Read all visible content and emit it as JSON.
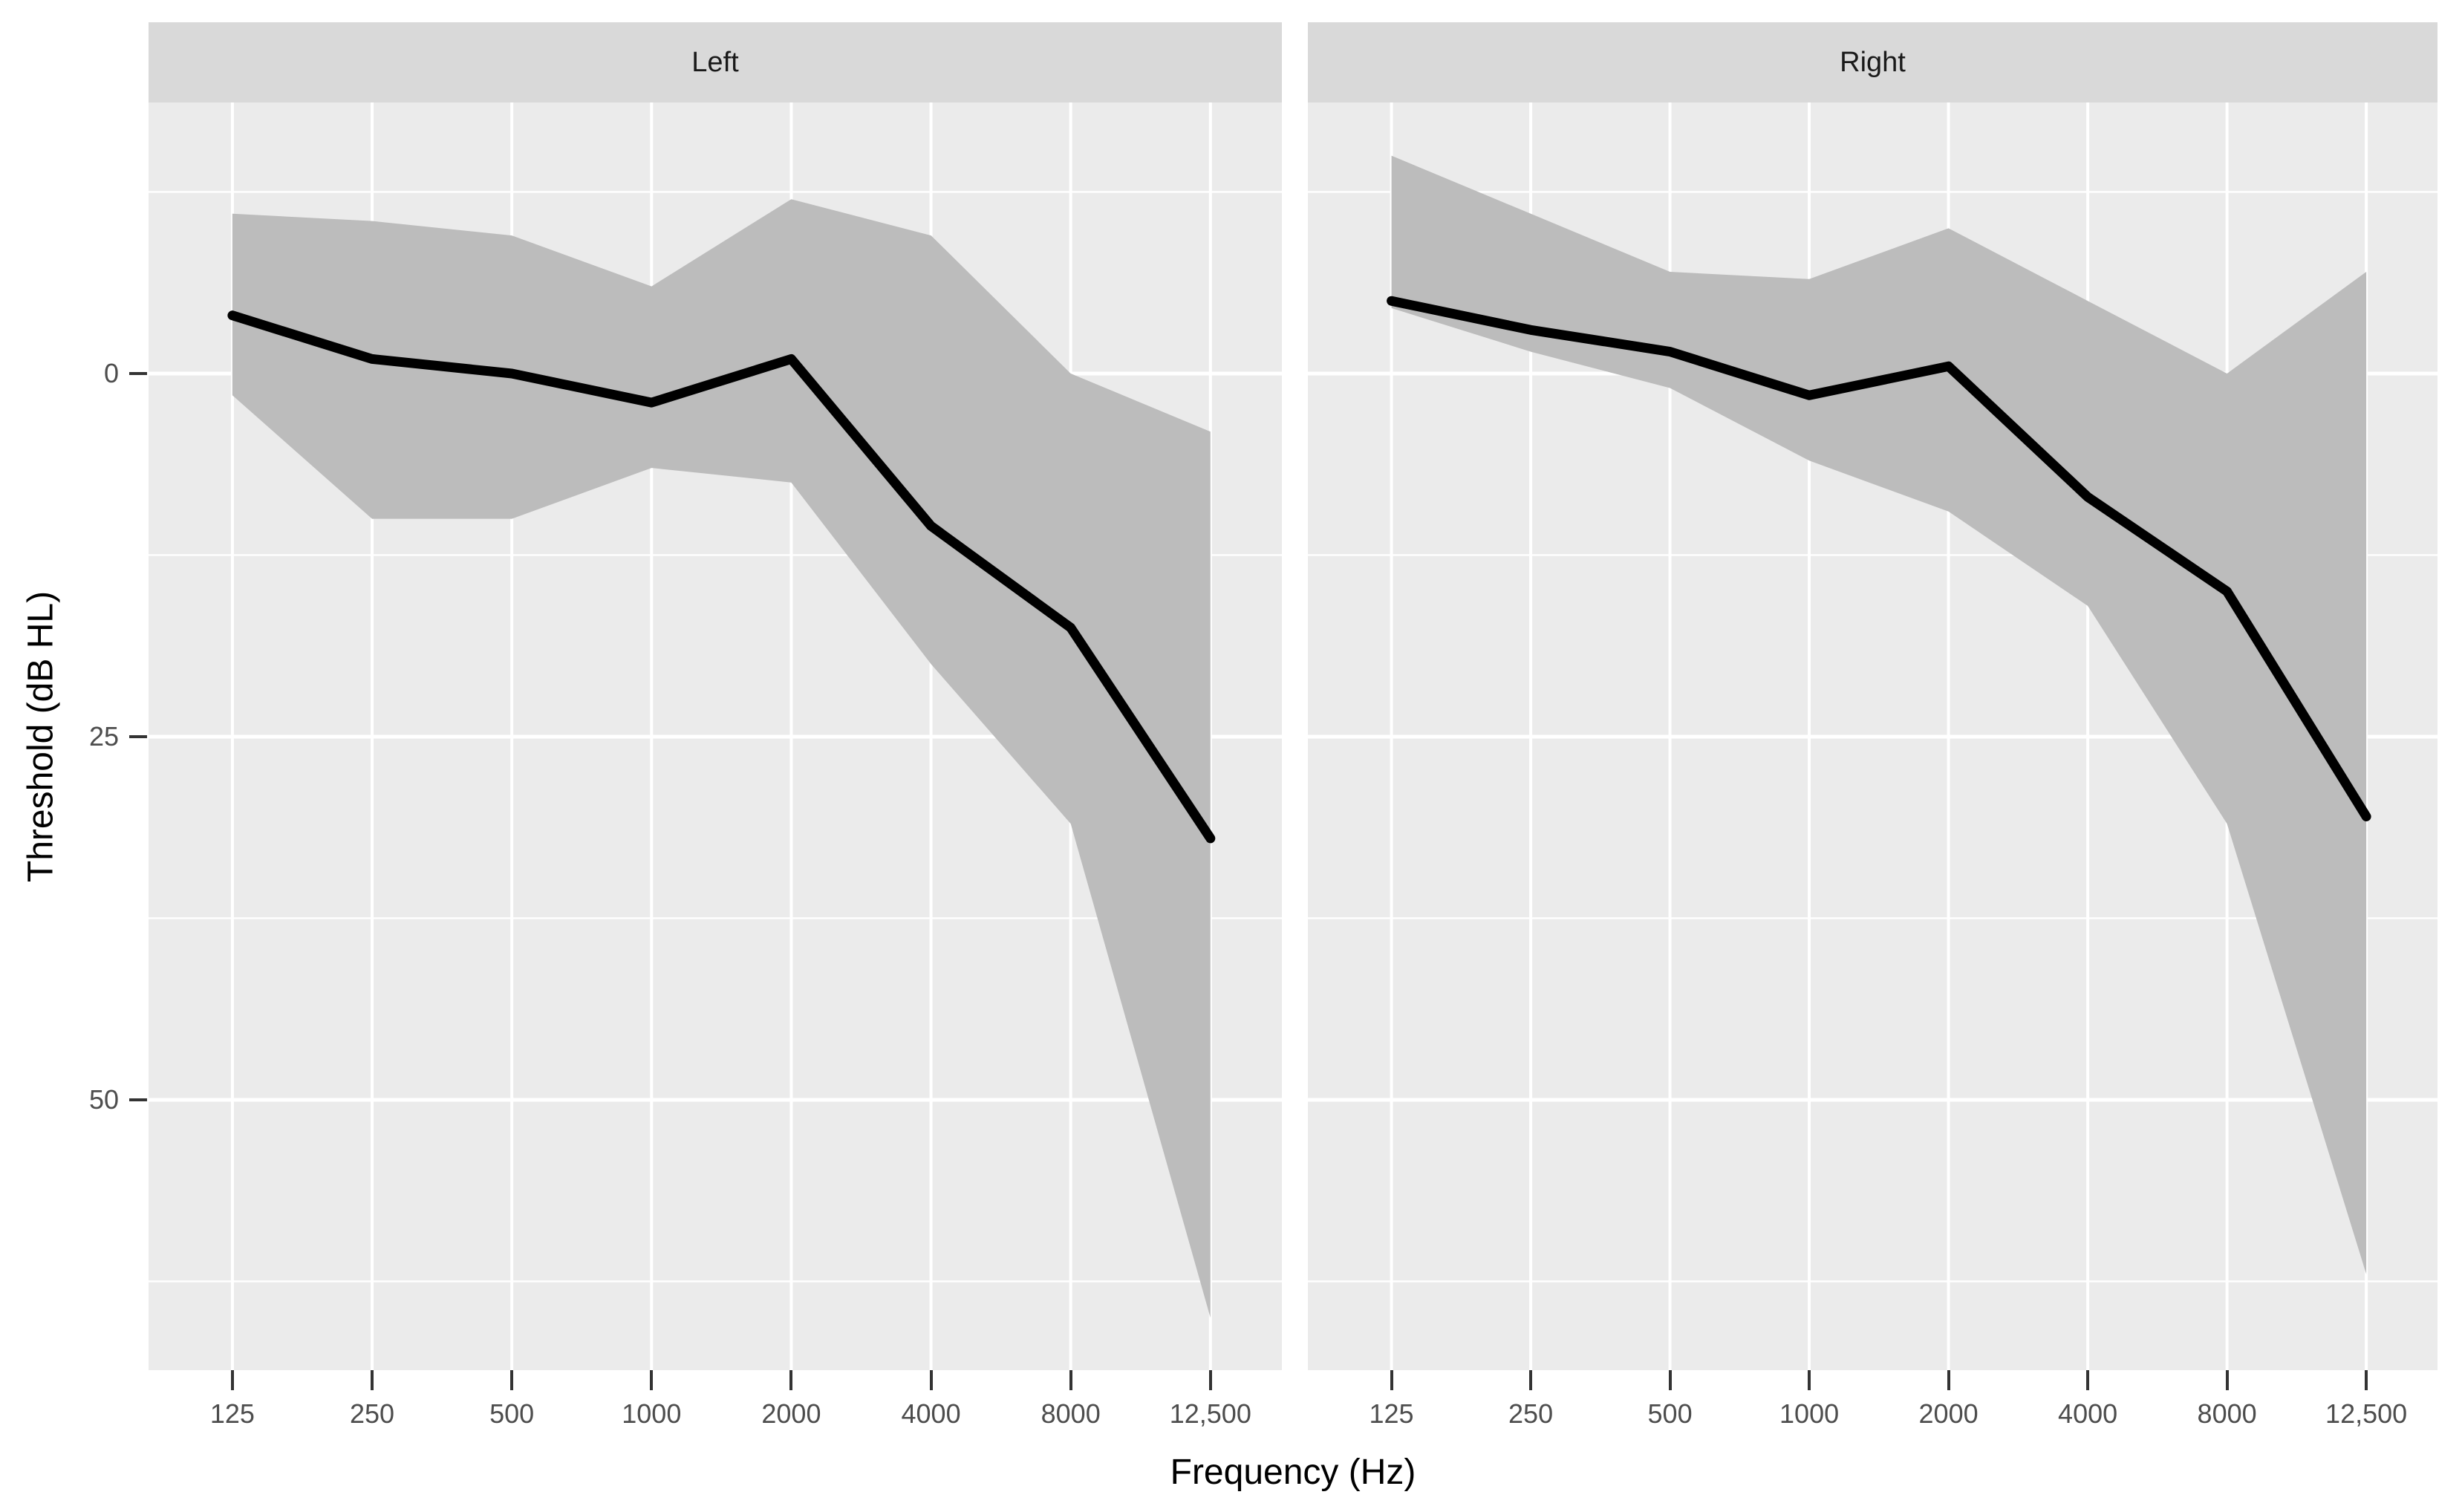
{
  "chart_data": {
    "type": "line",
    "description": "Faceted ribbon-and-line plot (ggplot style) of hearing thresholds by frequency for left and right ears; y axis reversed (0 dB HL at top), shaded band = spread around mean threshold",
    "x": {
      "label": "Frequency (Hz)",
      "ticks": [
        125,
        250,
        500,
        1000,
        2000,
        4000,
        8000,
        12500
      ],
      "tick_labels": [
        "125",
        "250",
        "500",
        "1000",
        "2000",
        "4000",
        "8000",
        "12,500"
      ],
      "scale": "log-like, evenly spaced ticks"
    },
    "y": {
      "label": "Threshold (dB HL)",
      "ticks": [
        0,
        25,
        50
      ],
      "tick_labels": [
        "0",
        "25",
        "50"
      ],
      "minor_ticks": [
        -12.5,
        12.5,
        37.5,
        62.5
      ],
      "reversed": true,
      "range_top_dB": -18.7,
      "range_bottom_dB": 68.6,
      "grid": true,
      "legend": "none"
    },
    "facets": [
      {
        "label": "Left",
        "series": [
          {
            "name": "mean_threshold",
            "values": [
              -4,
              -1,
              0,
              2,
              -1,
              10.5,
              17.5,
              32
            ]
          },
          {
            "name": "band_upper_edge",
            "values": [
              -11,
              -10.5,
              -9.5,
              -6,
              -12,
              -9.5,
              0,
              4
            ]
          },
          {
            "name": "band_lower_edge",
            "values": [
              1.5,
              10,
              10,
              6.5,
              7.5,
              20,
              31,
              65
            ]
          }
        ]
      },
      {
        "label": "Right",
        "series": [
          {
            "name": "mean_threshold",
            "values": [
              -5,
              -3,
              -1.5,
              1.5,
              -0.5,
              8.5,
              15,
              30.5
            ]
          },
          {
            "name": "band_upper_edge",
            "values": [
              -15,
              -11,
              -7,
              -6.5,
              -10,
              -5,
              0,
              -7
            ]
          },
          {
            "name": "band_lower_edge",
            "values": [
              -4.5,
              -1.5,
              1,
              6,
              9.5,
              16,
              31,
              62
            ]
          }
        ]
      }
    ]
  },
  "colors": {
    "panel_background": "#ebebeb",
    "strip_background": "#d9d9d9",
    "ribbon": "#bcbcbc",
    "mean_line": "#000000",
    "gridline": "#ffffff",
    "tick_mark": "#333333",
    "tick_text": "#4d4d4d",
    "axis_title_text": "#000000",
    "figure_background": "#ffffff"
  },
  "axis_titles": {
    "x": "Frequency (Hz)",
    "y": "Threshold (dB HL)"
  }
}
